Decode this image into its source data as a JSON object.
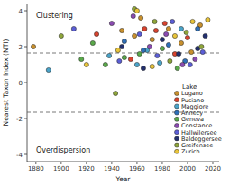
{
  "chart_data": {
    "type": "scatter",
    "x_label": "Year",
    "y_label": "Nearest Taxon Index (NTI)",
    "annotations": [
      "Clustering",
      "Overdispersion"
    ],
    "legend_title": "Lake",
    "legend": "right",
    "xlim": [
      1873,
      2025
    ],
    "xticks": [
      1880,
      1900,
      1920,
      1940,
      1960,
      1980,
      2000,
      2020
    ],
    "ylim": [
      -4.4,
      4.4
    ],
    "yticks": [
      -4,
      -2,
      0,
      2,
      4
    ],
    "thresholds": [
      1.65,
      -1.65
    ],
    "series": [
      {
        "name": "Lugano",
        "color": "#c8902e",
        "x": [
          1878,
          1948,
          1958,
          1963,
          1972,
          1985,
          1995,
          2003,
          2010
        ],
        "values": [
          2.0,
          2.9,
          2.6,
          3.6,
          2.4,
          3.0,
          2.2,
          1.7,
          3.2
        ]
      },
      {
        "name": "Pusiano",
        "color": "#d8432e",
        "x": [
          1928,
          1955,
          1966,
          1975,
          1982,
          1990,
          2000
        ],
        "values": [
          2.7,
          1.3,
          3.0,
          2.9,
          3.3,
          1.6,
          2.5
        ]
      },
      {
        "name": "Maggiore",
        "color": "#4aa3c8",
        "x": [
          1890,
          1938,
          1960,
          1968,
          1978,
          1995
        ],
        "values": [
          0.7,
          1.5,
          1.0,
          1.8,
          1.1,
          3.0
        ]
      },
      {
        "name": "Annecy",
        "color": "#2e6fb8",
        "x": [
          1950,
          1965,
          1985,
          1998,
          2008
        ],
        "values": [
          2.3,
          1.8,
          2.1,
          1.2,
          3.0
        ]
      },
      {
        "name": "Geneva",
        "color": "#5aa84a",
        "x": [
          1916,
          1925,
          1935,
          1950,
          1962,
          1980,
          1992
        ],
        "values": [
          1.3,
          2.2,
          1.0,
          1.4,
          1.6,
          1.9,
          0.8
        ]
      },
      {
        "name": "Constance",
        "color": "#8a4bb0",
        "x": [
          1940,
          1957,
          1970,
          1983,
          1996,
          2006
        ],
        "values": [
          3.3,
          3.7,
          2.0,
          2.7,
          1.0,
          1.3
        ]
      },
      {
        "name": "Hallwilersee",
        "color": "#5b5ed6",
        "x": [
          1910,
          1946,
          1962,
          1976,
          1988,
          2002,
          2012
        ],
        "values": [
          3.0,
          1.2,
          2.7,
          1.5,
          3.4,
          1.0,
          1.7
        ]
      },
      {
        "name": "Baldeggersee",
        "color": "#23306e",
        "x": [
          1948,
          1965,
          1980,
          1993,
          2008,
          2014
        ],
        "values": [
          2.0,
          0.8,
          2.4,
          1.6,
          1.9,
          2.6
        ]
      },
      {
        "name": "Greifensee",
        "color": "#8fa63a",
        "x": [
          1900,
          1943,
          1958,
          1974,
          1986,
          1999,
          2011
        ],
        "values": [
          2.6,
          -0.6,
          4.1,
          3.4,
          1.2,
          2.8,
          2.0
        ]
      },
      {
        "name": "Zurich",
        "color": "#e8c43a",
        "x": [
          1920,
          1945,
          1960,
          1972,
          1990,
          2004,
          2016
        ],
        "values": [
          1.0,
          1.8,
          4.0,
          0.9,
          2.6,
          3.4,
          3.5
        ]
      }
    ]
  }
}
